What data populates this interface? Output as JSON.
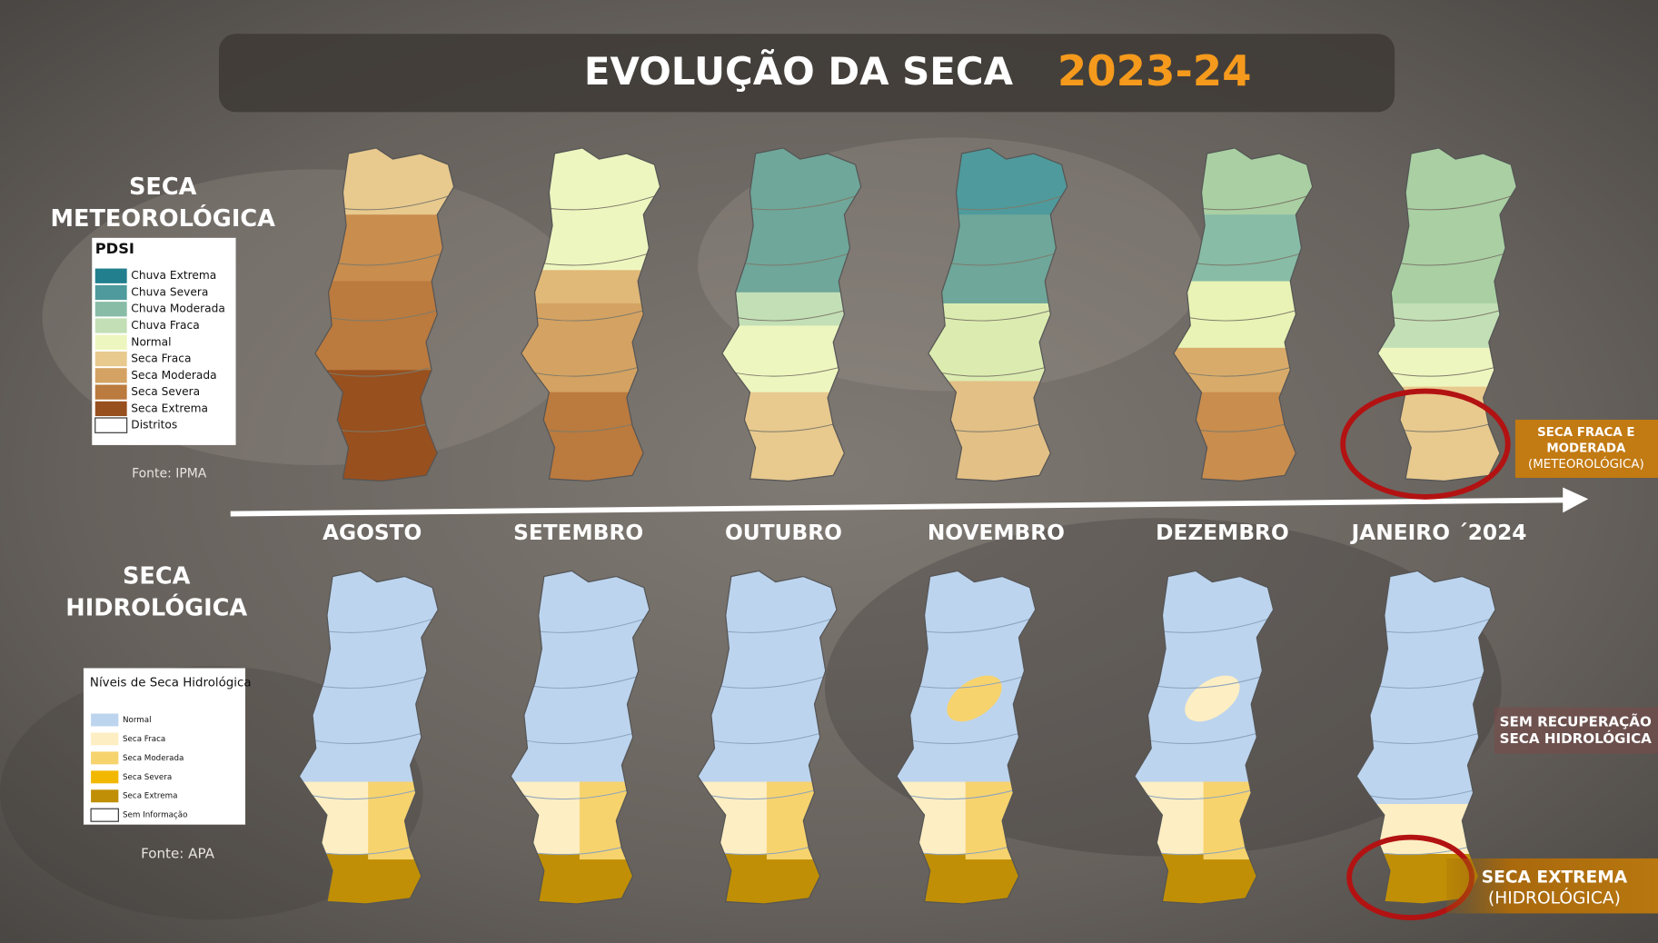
{
  "header": {
    "title": "EVOLUÇÃO DA SECA",
    "period": "2023-24"
  },
  "meteorological": {
    "label": [
      "SECA",
      "METEOROLÓGICA"
    ],
    "legend": {
      "title": "PDSI",
      "items": [
        {
          "label": "Chuva Extrema",
          "color": "#217f8e"
        },
        {
          "label": "Chuva Severa",
          "color": "#4f9a9c"
        },
        {
          "label": "Chuva Moderada",
          "color": "#88bca6"
        },
        {
          "label": "Chuva Fraca",
          "color": "#c3dfb6"
        },
        {
          "label": "Normal",
          "color": "#eef6bf"
        },
        {
          "label": "Seca Fraca",
          "color": "#e8c98e"
        },
        {
          "label": "Seca Moderada",
          "color": "#d4a262"
        },
        {
          "label": "Seca Severa",
          "color": "#bb7a3e"
        },
        {
          "label": "Seca Extrema",
          "color": "#98501f"
        },
        {
          "label": "Distritos",
          "color": "#ffffff"
        }
      ]
    },
    "source": "Fonte: IPMA"
  },
  "months": [
    "AGOSTO",
    "SETEMBRO",
    "OUTUBRO",
    "NOVEMBRO",
    "DEZEMBRO",
    "JANEIRO ´2024"
  ],
  "hydrological": {
    "label": [
      "SECA",
      "HIDROLÓGICA"
    ],
    "legend": {
      "title": "Níveis de Seca Hidrológica",
      "items": [
        {
          "label": "Normal",
          "color": "#bdd4ee"
        },
        {
          "label": "Seca Fraca",
          "color": "#fdeec3"
        },
        {
          "label": "Seca Moderada",
          "color": "#f7d36e"
        },
        {
          "label": "Seca Severa",
          "color": "#f2b800"
        },
        {
          "label": "Seca Extrema",
          "color": "#c08f06"
        },
        {
          "label": "Sem Informação",
          "color": "#ffffff"
        }
      ]
    },
    "source": "Fonte: APA"
  },
  "callouts": [
    {
      "lines": [
        "SECA FRACA E",
        "MODERADA",
        "(METEOROLÓGICA)"
      ]
    },
    {
      "lines": [
        "SEM RECUPERAÇÃO",
        "SECA HIDROLÓGICA"
      ]
    },
    {
      "lines": [
        "SECA EXTREMA",
        "(HIDROLÓGICA)"
      ]
    }
  ]
}
